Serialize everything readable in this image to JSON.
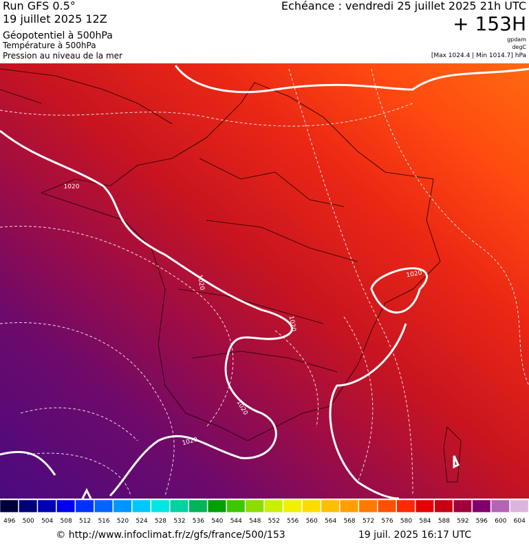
{
  "header": {
    "run": "Run GFS 0.5°",
    "date": "19 juillet 2025 12Z",
    "field1": "Géopotentiel à 500hPa",
    "field2": "Température à 500hPa",
    "field3": "Pression au niveau de la mer",
    "valid": "Echéance : vendredi 25 juillet 2025 21h UTC",
    "lead": "+ 153H",
    "unit1": "gpdam",
    "unit2": "degC",
    "unit3": "[Max 1024.4 | Min 1014.7] hPa"
  },
  "map": {
    "isobar_labels": [
      "1020",
      "1020",
      "1020",
      "1020",
      "1020",
      "1020"
    ]
  },
  "colorbar": {
    "values": [
      496,
      500,
      504,
      508,
      512,
      516,
      520,
      524,
      528,
      532,
      536,
      540,
      544,
      548,
      552,
      556,
      560,
      564,
      568,
      572,
      576,
      580,
      584,
      588,
      592,
      596,
      600,
      604
    ],
    "colors": [
      "#00003c",
      "#000078",
      "#0000b4",
      "#0000f0",
      "#0032ff",
      "#0064ff",
      "#0096ff",
      "#00c8ff",
      "#00e6e6",
      "#00d2a0",
      "#00b45a",
      "#00a000",
      "#3cc800",
      "#8cdc00",
      "#c8f000",
      "#f0f000",
      "#ffdc00",
      "#ffbe00",
      "#ffa000",
      "#ff7800",
      "#ff5000",
      "#ff2800",
      "#e60000",
      "#c80014",
      "#a0003c",
      "#82006e",
      "#b464b4",
      "#dcb4dc"
    ]
  },
  "footer": {
    "url": "© http://www.infoclimat.fr/z/gfs/france/500/153",
    "timestamp": "19 juil. 2025 16:17 UTC"
  }
}
